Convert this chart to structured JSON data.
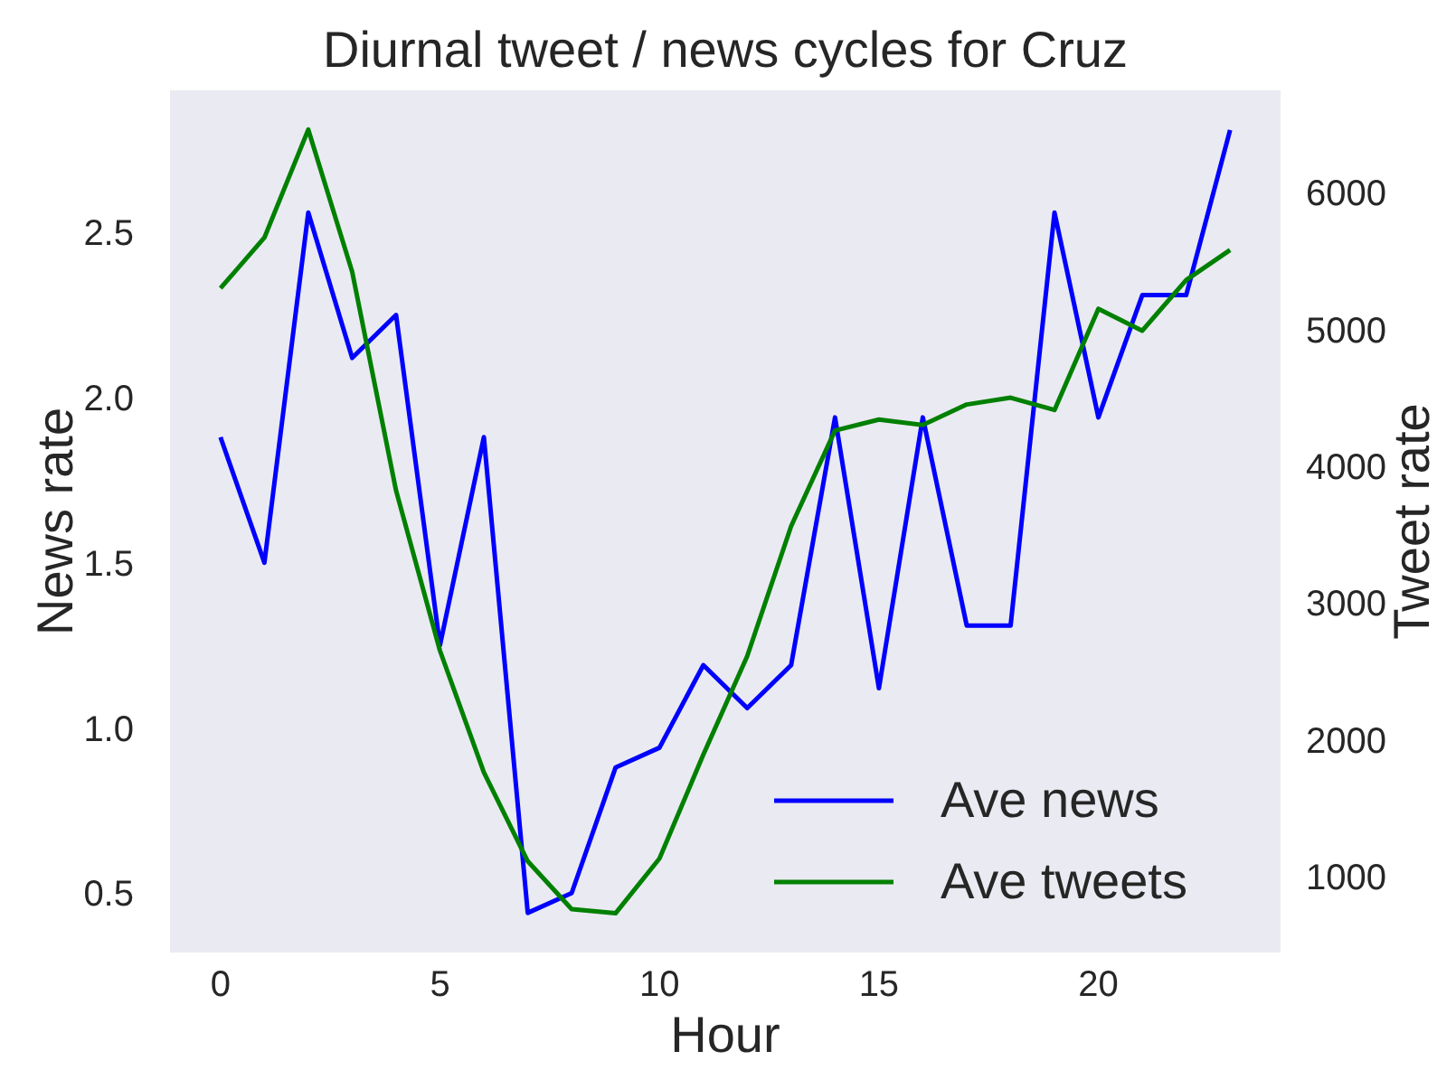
{
  "chart_data": {
    "type": "line",
    "title": "Diurnal tweet / news cycles for Cruz",
    "xlabel": "Hour",
    "ylabel": "News rate",
    "y2label": "Tweet rate",
    "x": [
      0,
      1,
      2,
      3,
      4,
      5,
      6,
      7,
      8,
      9,
      10,
      11,
      12,
      13,
      14,
      15,
      16,
      17,
      18,
      19,
      20,
      21,
      22,
      23
    ],
    "series": [
      {
        "name": "Ave news",
        "color": "#0000ff",
        "values": [
          1.88,
          1.5,
          2.56,
          2.12,
          2.25,
          1.25,
          1.88,
          0.44,
          0.5,
          0.88,
          0.94,
          1.19,
          1.06,
          1.19,
          1.94,
          1.12,
          1.94,
          1.31,
          1.31,
          2.56,
          1.94,
          2.31,
          2.31,
          2.81
        ]
      },
      {
        "name": "Ave tweets",
        "color": "#008000",
        "axis": "y2",
        "values": [
          5300,
          5670,
          6460,
          5420,
          3820,
          2650,
          1760,
          1110,
          760,
          730,
          1130,
          1890,
          2610,
          3560,
          4260,
          4340,
          4300,
          4450,
          4500,
          4410,
          5150,
          4990,
          5360,
          5580
        ]
      }
    ],
    "xlim": [
      -1.15,
      24.15
    ],
    "xticks": [
      0,
      5,
      10,
      15,
      20
    ],
    "ylim": [
      0.32,
      2.93
    ],
    "yticks": [
      0.5,
      {
        "value": 1,
        "label": "1.0"
      },
      1.5,
      {
        "value": 2,
        "label": "2.0"
      },
      2.5
    ],
    "y2lim": [
      443,
      6747
    ],
    "y2ticks": [
      1000,
      2000,
      3000,
      4000,
      5000,
      6000
    ],
    "grid": false,
    "legend": "bottom right",
    "marker": "none",
    "line_style": "solid"
  }
}
